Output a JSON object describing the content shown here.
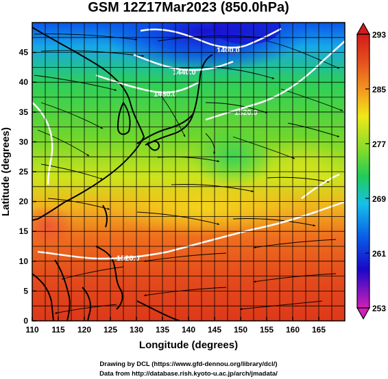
{
  "title": "GSM 12Z17Mar2023 (850.0hPa)",
  "xlabel": "Longitude (degrees)",
  "ylabel": "Latitude  (degrees)",
  "credits": [
    "Drawing by DCL (https://www.gfd-dennou.org/library/dcl/)",
    "Data from http://database.rish.kyoto-u.ac.jp/arch/jmadata/"
  ],
  "x_ticks": [
    "110",
    "115",
    "120",
    "125",
    "130",
    "135",
    "140",
    "145",
    "150",
    "155",
    "160",
    "165"
  ],
  "y_ticks": [
    "0",
    "5",
    "10",
    "15",
    "20",
    "25",
    "30",
    "35",
    "40",
    "45"
  ],
  "colorbar": {
    "ticks": [
      "293",
      "285",
      "277",
      "269",
      "261",
      "253"
    ],
    "range": [
      253,
      293
    ],
    "colors": [
      "#d11fb8",
      "#1a08c8",
      "#0a5ee8",
      "#16c0e8",
      "#20cc58",
      "#86dc2a",
      "#f0e818",
      "#f39520",
      "#e44a1e",
      "#d41a1a"
    ]
  },
  "contours": [
    "1400.0",
    "1440.0",
    "1480.0",
    "1520.0",
    "1520.0"
  ],
  "chart_data": {
    "type": "heatmap",
    "title": "GSM 12Z17Mar2023 (850.0hPa)",
    "xlabel": "Longitude (degrees)",
    "ylabel": "Latitude  (degrees)",
    "xlim": [
      110,
      170
    ],
    "ylim": [
      0,
      50
    ],
    "x_ticks": [
      110,
      115,
      120,
      125,
      130,
      135,
      140,
      145,
      150,
      155,
      160,
      165
    ],
    "y_ticks": [
      0,
      5,
      10,
      15,
      20,
      25,
      30,
      35,
      40,
      45
    ],
    "color_range": [
      253,
      293
    ],
    "colorbar_ticks": [
      293,
      285,
      277,
      269,
      261,
      253
    ],
    "contour_labels": [
      "1400.0",
      "1440.0",
      "1480.0",
      "1520.0",
      "1520.0"
    ]
  }
}
